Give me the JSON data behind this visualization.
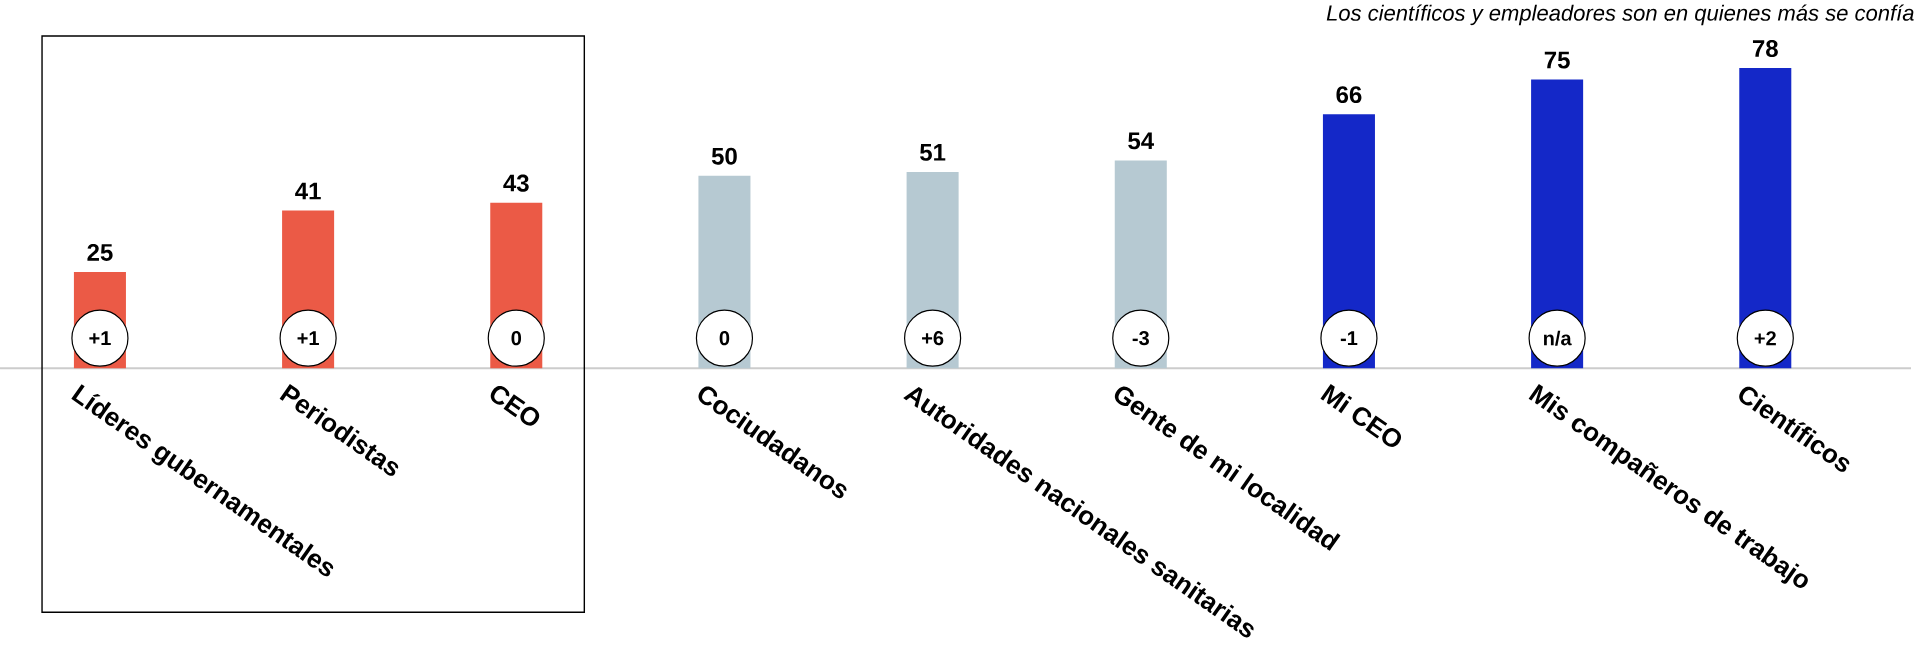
{
  "chart_data": {
    "type": "bar",
    "title": "Los científicos y empleadores son en quienes más se confía",
    "categories": [
      "Líderes gubernamentales",
      "Periodistas",
      "CEO",
      "Cociudadanos",
      "Autoridades nacionales sanitarias",
      "Gente de mi localidad",
      "Mi CEO",
      "Mis compañeros de trabajo",
      "Científicos"
    ],
    "values": [
      25,
      41,
      43,
      50,
      51,
      54,
      66,
      75,
      78
    ],
    "colors": [
      "#eb5a46",
      "#eb5a46",
      "#eb5a46",
      "#b6c9d2",
      "#b6c9d2",
      "#b6c9d2",
      "#1428c8",
      "#1428c8",
      "#1428c8"
    ],
    "data_labels": true,
    "annotations": [
      "+1",
      "+1",
      "0",
      "0",
      "+6",
      "-3",
      "-1",
      "n/a",
      "+2"
    ]
  }
}
